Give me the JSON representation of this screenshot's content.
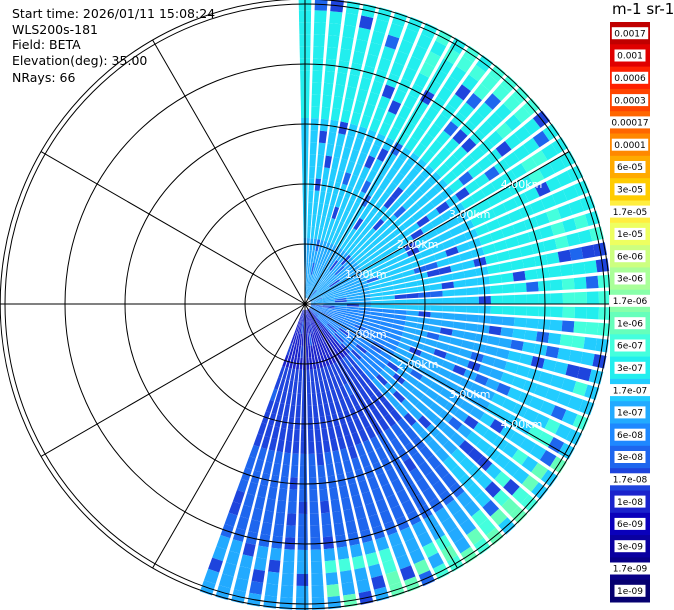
{
  "info": {
    "start_time": "Start time: 2026/01/11 15:08:24",
    "instrument": "WLS200s-181",
    "field": "Field: BETA",
    "elevation": "Elevation(deg): 35.00",
    "nrays": "NRays: 66"
  },
  "colorbar": {
    "title": "m-1 sr-1",
    "labels": [
      "0.0017",
      "0.001",
      "0.0006",
      "0.0003",
      "0.00017",
      "0.0001",
      "6e-05",
      "3e-05",
      "1.7e-05",
      "1e-05",
      "6e-06",
      "3e-06",
      "1.7e-06",
      "1e-06",
      "6e-07",
      "3e-07",
      "1.7e-07",
      "1e-07",
      "6e-08",
      "3e-08",
      "1.7e-08",
      "1e-08",
      "6e-09",
      "3e-09",
      "1.7e-09",
      "1e-09"
    ],
    "colors": [
      "#c00000",
      "#e00000",
      "#ff2000",
      "#ff4400",
      "#ff6600",
      "#ff8800",
      "#ffaa00",
      "#ffcc00",
      "#ffee40",
      "#eeff60",
      "#ccff80",
      "#aaff99",
      "#88ffaa",
      "#66ffbb",
      "#44ffdd",
      "#22eeee",
      "#22ccff",
      "#22aaff",
      "#1e88ff",
      "#1e66ee",
      "#1e44dd",
      "#1a22cc",
      "#0a00bb",
      "#0a00a0",
      "#080088",
      "#060070"
    ]
  },
  "chart_data": {
    "type": "ppi",
    "title": "",
    "rings_km": [
      1.0,
      2.0,
      3.0,
      4.0,
      5.0
    ],
    "ring_labels": [
      "1.00km",
      "2.00km",
      "3.00km",
      "4.00km"
    ],
    "max_range_km": 5.08,
    "sector_deg": [
      0,
      202
    ],
    "nrays": 66,
    "ray_step_deg": 3.06
  }
}
